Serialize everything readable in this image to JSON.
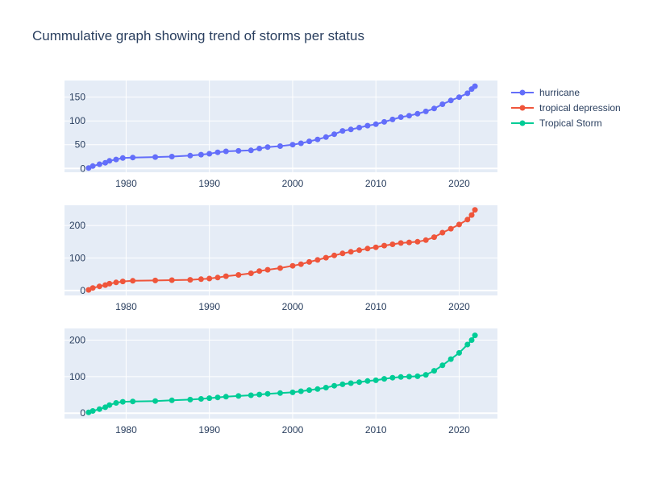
{
  "chart_data": {
    "type": "line",
    "title": "Cummulative graph showing trend of storms per status",
    "legend_position": "top-right",
    "grid": true,
    "x_ticks": [
      1980,
      1990,
      2000,
      2010,
      2020
    ],
    "xlim": [
      1972.6,
      2024.6
    ],
    "series": [
      {
        "name": "hurricane",
        "color": "#636efa",
        "ylim": [
          -8,
          185
        ],
        "y_ticks": [
          0,
          50,
          100,
          150
        ],
        "points": [
          [
            1975.5,
            1
          ],
          [
            1976,
            5
          ],
          [
            1976.8,
            9
          ],
          [
            1977.5,
            12
          ],
          [
            1978,
            16
          ],
          [
            1978.8,
            19
          ],
          [
            1979.6,
            22
          ],
          [
            1980.8,
            23
          ],
          [
            1983.5,
            24
          ],
          [
            1985.5,
            25
          ],
          [
            1987.7,
            27
          ],
          [
            1989,
            29
          ],
          [
            1990,
            31
          ],
          [
            1991,
            34
          ],
          [
            1992,
            36
          ],
          [
            1993.5,
            37
          ],
          [
            1995,
            38
          ],
          [
            1996,
            42
          ],
          [
            1997,
            45
          ],
          [
            1998.5,
            47
          ],
          [
            2000,
            50
          ],
          [
            2001,
            53
          ],
          [
            2002,
            57
          ],
          [
            2003,
            61
          ],
          [
            2004,
            66
          ],
          [
            2005,
            72
          ],
          [
            2006,
            79
          ],
          [
            2007,
            82
          ],
          [
            2008,
            86
          ],
          [
            2009,
            90
          ],
          [
            2010,
            93
          ],
          [
            2011,
            98
          ],
          [
            2012,
            103
          ],
          [
            2013,
            108
          ],
          [
            2014,
            111
          ],
          [
            2015,
            115
          ],
          [
            2016,
            120
          ],
          [
            2017,
            126
          ],
          [
            2018,
            135
          ],
          [
            2019,
            143
          ],
          [
            2020,
            150
          ],
          [
            2021,
            158
          ],
          [
            2021.5,
            167
          ],
          [
            2021.9,
            173
          ]
        ]
      },
      {
        "name": "tropical depression",
        "color": "#ef553b",
        "ylim": [
          -15,
          262
        ],
        "y_ticks": [
          0,
          100,
          200
        ],
        "points": [
          [
            1975.5,
            2
          ],
          [
            1976,
            8
          ],
          [
            1976.8,
            13
          ],
          [
            1977.5,
            17
          ],
          [
            1978,
            21
          ],
          [
            1978.8,
            25
          ],
          [
            1979.6,
            28
          ],
          [
            1980.8,
            30
          ],
          [
            1983.5,
            31
          ],
          [
            1985.5,
            32
          ],
          [
            1987.7,
            33
          ],
          [
            1989,
            35
          ],
          [
            1990,
            37
          ],
          [
            1991,
            40
          ],
          [
            1992,
            44
          ],
          [
            1993.5,
            48
          ],
          [
            1995,
            53
          ],
          [
            1996,
            60
          ],
          [
            1997,
            64
          ],
          [
            1998.5,
            69
          ],
          [
            2000,
            76
          ],
          [
            2001,
            81
          ],
          [
            2002,
            88
          ],
          [
            2003,
            94
          ],
          [
            2004,
            101
          ],
          [
            2005,
            108
          ],
          [
            2006,
            114
          ],
          [
            2007,
            119
          ],
          [
            2008,
            124
          ],
          [
            2009,
            129
          ],
          [
            2010,
            133
          ],
          [
            2011,
            138
          ],
          [
            2012,
            142
          ],
          [
            2013,
            146
          ],
          [
            2014,
            148
          ],
          [
            2015,
            150
          ],
          [
            2016,
            155
          ],
          [
            2017,
            164
          ],
          [
            2018,
            178
          ],
          [
            2019,
            190
          ],
          [
            2020,
            203
          ],
          [
            2021,
            218
          ],
          [
            2021.5,
            232
          ],
          [
            2021.9,
            248
          ]
        ]
      },
      {
        "name": "Tropical Storm",
        "color": "#00cc96",
        "ylim": [
          -15,
          232
        ],
        "y_ticks": [
          0,
          100,
          200
        ],
        "points": [
          [
            1975.5,
            2
          ],
          [
            1976,
            6
          ],
          [
            1976.8,
            11
          ],
          [
            1977.5,
            16
          ],
          [
            1978,
            22
          ],
          [
            1978.8,
            28
          ],
          [
            1979.6,
            31
          ],
          [
            1980.8,
            32
          ],
          [
            1983.5,
            33
          ],
          [
            1985.5,
            35
          ],
          [
            1987.7,
            37
          ],
          [
            1989,
            39
          ],
          [
            1990,
            41
          ],
          [
            1991,
            43
          ],
          [
            1992,
            45
          ],
          [
            1993.5,
            47
          ],
          [
            1995,
            49
          ],
          [
            1996,
            51
          ],
          [
            1997,
            53
          ],
          [
            1998.5,
            55
          ],
          [
            2000,
            57
          ],
          [
            2001,
            60
          ],
          [
            2002,
            63
          ],
          [
            2003,
            66
          ],
          [
            2004,
            70
          ],
          [
            2005,
            75
          ],
          [
            2006,
            79
          ],
          [
            2007,
            82
          ],
          [
            2008,
            85
          ],
          [
            2009,
            88
          ],
          [
            2010,
            90
          ],
          [
            2011,
            94
          ],
          [
            2012,
            97
          ],
          [
            2013,
            99
          ],
          [
            2014,
            100
          ],
          [
            2015,
            101
          ],
          [
            2016,
            105
          ],
          [
            2017,
            116
          ],
          [
            2018,
            131
          ],
          [
            2019,
            148
          ],
          [
            2020,
            165
          ],
          [
            2021,
            188
          ],
          [
            2021.5,
            200
          ],
          [
            2021.9,
            213
          ]
        ]
      }
    ]
  }
}
